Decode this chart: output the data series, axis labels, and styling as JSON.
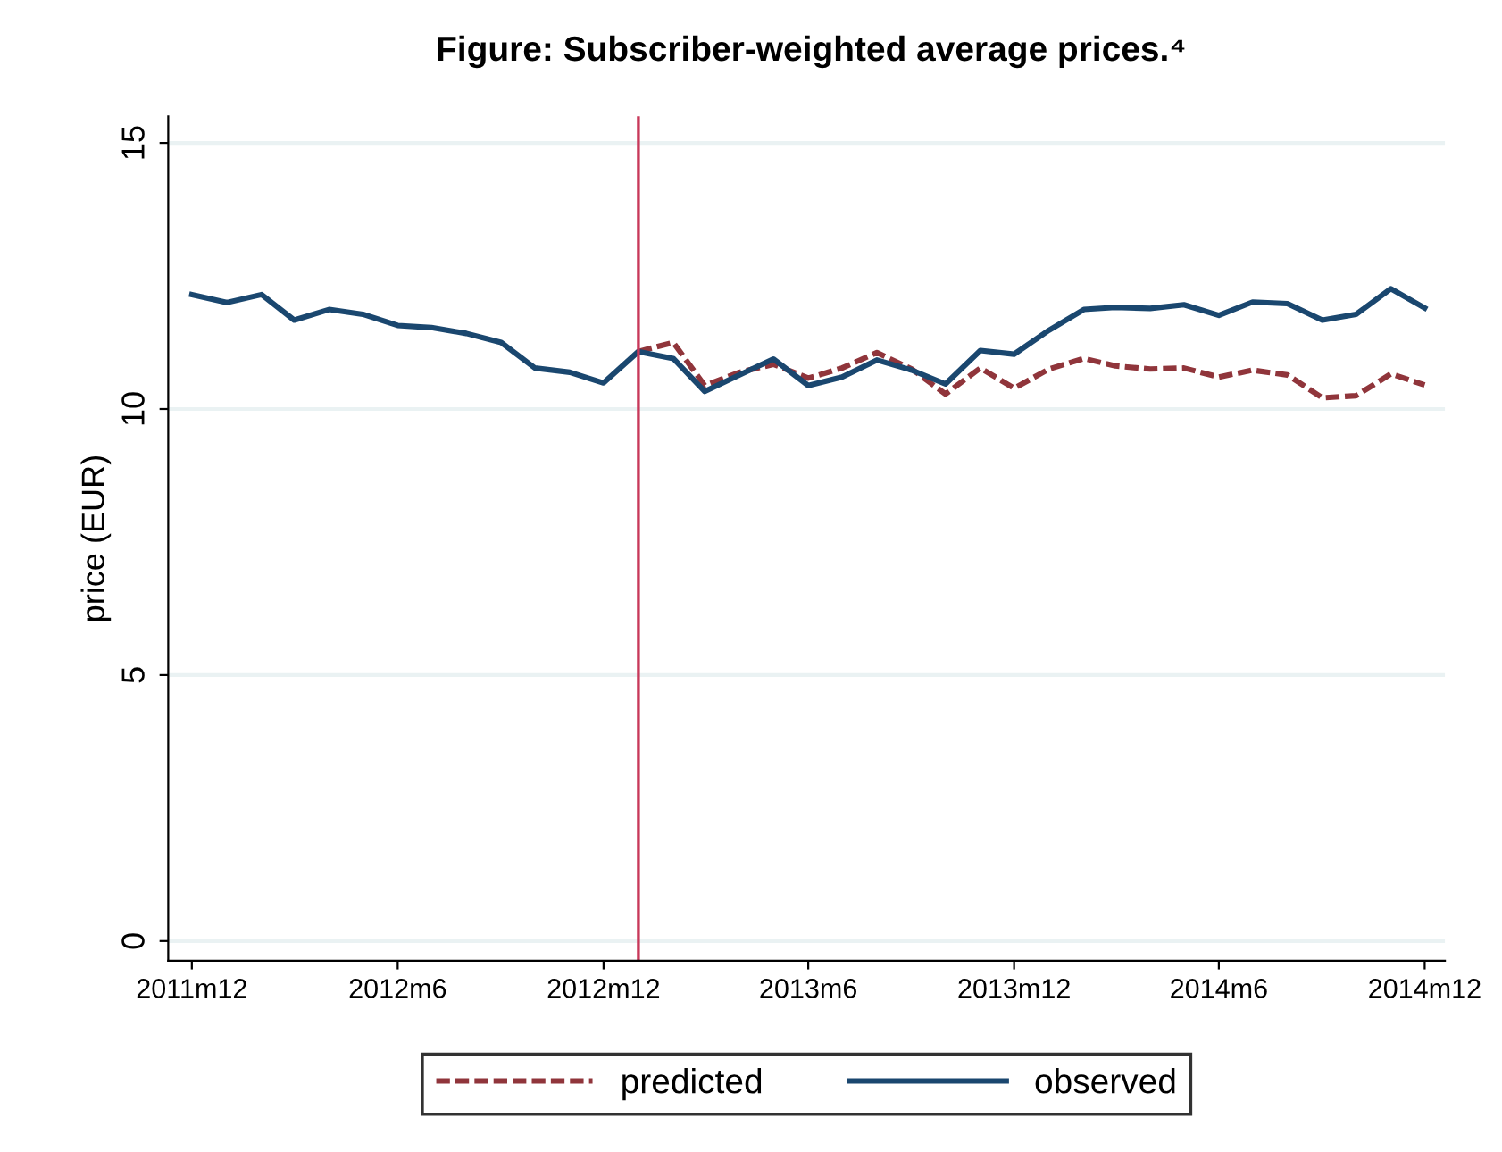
{
  "chart_data": {
    "type": "line",
    "title": "Figure: Subscriber-weighted average prices.⁴",
    "ylabel": "price (EUR)",
    "x": [
      "2011-12",
      "2012-01",
      "2012-02",
      "2012-03",
      "2012-04",
      "2012-05",
      "2012-06",
      "2012-07",
      "2012-08",
      "2012-09",
      "2012-10",
      "2012-11",
      "2012-12",
      "2013-01",
      "2013-02",
      "2013-03",
      "2013-04",
      "2013-05",
      "2013-06",
      "2013-07",
      "2013-08",
      "2013-09",
      "2013-10",
      "2013-11",
      "2013-12",
      "2014-01",
      "2014-02",
      "2014-03",
      "2014-04",
      "2014-05",
      "2014-06",
      "2014-07",
      "2014-08",
      "2014-09",
      "2014-10",
      "2014-11",
      "2014-12"
    ],
    "series": [
      {
        "name": "predicted",
        "color": "#90353b",
        "line_style": "dashed",
        "values": [
          null,
          null,
          null,
          null,
          null,
          null,
          null,
          null,
          null,
          null,
          null,
          null,
          null,
          11.08,
          11.25,
          10.44,
          10.69,
          10.84,
          10.58,
          10.77,
          11.06,
          10.75,
          10.28,
          10.77,
          10.39,
          10.75,
          10.95,
          10.81,
          10.75,
          10.77,
          10.6,
          10.73,
          10.64,
          10.21,
          10.25,
          10.66,
          10.45
        ]
      },
      {
        "name": "observed",
        "color": "#1a476f",
        "line_style": "solid",
        "values": [
          12.15,
          12.0,
          12.15,
          11.67,
          11.87,
          11.78,
          11.57,
          11.53,
          11.42,
          11.25,
          10.77,
          10.69,
          10.49,
          11.08,
          10.95,
          10.33,
          10.64,
          10.94,
          10.44,
          10.6,
          10.92,
          10.73,
          10.47,
          11.1,
          11.03,
          11.48,
          11.87,
          11.91,
          11.89,
          11.96,
          11.76,
          12.01,
          11.98,
          11.67,
          11.78,
          12.26,
          11.9
        ]
      }
    ],
    "xlim": [
      "2011-11-10",
      "2014-12-19"
    ],
    "xticks": [
      {
        "value": "2011-12",
        "label": "2011m12"
      },
      {
        "value": "2012-06",
        "label": "2012m6"
      },
      {
        "value": "2012-12",
        "label": "2012m12"
      },
      {
        "value": "2013-06",
        "label": "2013m6"
      },
      {
        "value": "2013-12",
        "label": "2013m12"
      },
      {
        "value": "2014-06",
        "label": "2014m6"
      },
      {
        "value": "2014-12",
        "label": "2014m12"
      }
    ],
    "ylim": [
      -0.37,
      15.5
    ],
    "yticks": [
      0,
      5,
      10,
      15
    ],
    "ref_lines": [
      {
        "axis": "x",
        "value": "2013-01",
        "color": "#c8385a"
      }
    ],
    "grid": "y",
    "legend": "bottom",
    "marker": "none"
  }
}
